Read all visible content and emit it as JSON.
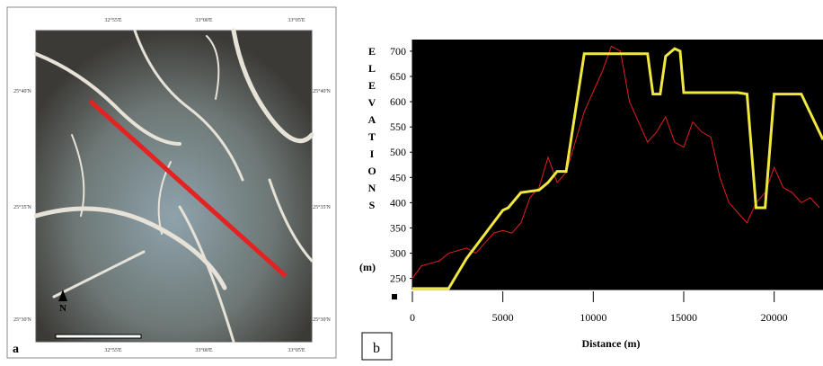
{
  "map": {
    "panel_label": "a",
    "north": "N",
    "lon_labels": [
      "32°55'E",
      "33°00'E",
      "33°05'E"
    ],
    "lat_labels": [
      "25°40'N",
      "25°35'N",
      "25°30'N"
    ]
  },
  "chart_data": {
    "type": "line",
    "panel_label": "b",
    "ylabel_letters": "ELEVATIONS",
    "ylabel_unit": "(m)",
    "xlabel": "Distance (m)",
    "xlim": [
      0,
      22700
    ],
    "xticks": [
      0,
      5000,
      10000,
      15000,
      20000
    ],
    "ylim": [
      228,
      723
    ],
    "yticks": [
      250,
      300,
      350,
      400,
      450,
      500,
      550,
      600,
      650,
      700
    ],
    "series": [
      {
        "color": "#e02020",
        "x": [
          0,
          500,
          1000,
          1500,
          2000,
          2500,
          3000,
          3500,
          4000,
          4500,
          5000,
          5500,
          6000,
          6500,
          7000,
          7500,
          8000,
          8500,
          9000,
          9500,
          10000,
          10500,
          11000,
          11500,
          12000,
          12500,
          13000,
          13500,
          14000,
          14500,
          15000,
          15500,
          16000,
          16500,
          17000,
          17500,
          18000,
          18500,
          19000,
          19500,
          20000,
          20500,
          21000,
          21500,
          22000,
          22500
        ],
        "values": [
          250,
          275,
          280,
          285,
          300,
          305,
          310,
          300,
          320,
          340,
          345,
          340,
          360,
          410,
          430,
          490,
          440,
          460,
          520,
          580,
          620,
          660,
          710,
          700,
          600,
          560,
          520,
          540,
          570,
          520,
          510,
          560,
          540,
          530,
          450,
          400,
          380,
          360,
          400,
          420,
          470,
          430,
          420,
          400,
          410,
          390
        ]
      },
      {
        "color": "#f0e840",
        "x": [
          0,
          2000,
          3000,
          5000,
          5300,
          6000,
          7000,
          7500,
          8000,
          8500,
          9500,
          13000,
          13300,
          13700,
          14000,
          14500,
          14800,
          15000,
          18000,
          18500,
          19000,
          19500,
          20000,
          21500,
          22700
        ],
        "values": [
          230,
          230,
          290,
          385,
          390,
          420,
          425,
          440,
          462,
          462,
          695,
          695,
          615,
          615,
          690,
          705,
          700,
          618,
          618,
          615,
          390,
          390,
          615,
          615,
          525
        ]
      }
    ]
  }
}
